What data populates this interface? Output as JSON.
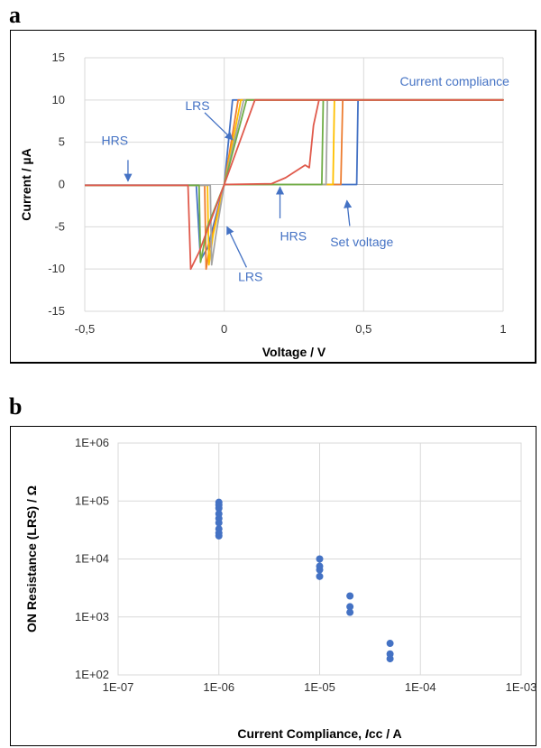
{
  "panels": {
    "a": "a",
    "b": "b"
  },
  "chart_data": [
    {
      "type": "line",
      "xlabel": "Voltage / V",
      "ylabel": "Current / µA",
      "xlim": [
        -0.5,
        1
      ],
      "ylim": [
        -15,
        15
      ],
      "xticks": [
        -0.5,
        0,
        0.5,
        1
      ],
      "xtick_labels": [
        "-0,5",
        "0",
        "0,5",
        "1"
      ],
      "yticks": [
        15,
        10,
        5,
        0,
        -5,
        -10,
        -15
      ],
      "yvgrid": true,
      "series": [
        {
          "color": "#4472c4",
          "points": [
            [
              -0.5,
              -0.1
            ],
            [
              -0.1,
              -0.1
            ],
            [
              -0.085,
              -8.9
            ],
            [
              -0.06,
              -7.5
            ],
            [
              0,
              0
            ],
            [
              0.03,
              10
            ],
            [
              1,
              10
            ],
            [
              0.48,
              10
            ],
            [
              0.475,
              0
            ],
            [
              0,
              0
            ]
          ]
        },
        {
          "color": "#ed7d31",
          "points": [
            [
              -0.5,
              -0.1
            ],
            [
              -0.07,
              -0.1
            ],
            [
              -0.065,
              -10
            ],
            [
              -0.05,
              -7
            ],
            [
              0,
              0
            ],
            [
              0.05,
              10
            ],
            [
              1,
              10
            ],
            [
              0.425,
              10
            ],
            [
              0.418,
              0
            ],
            [
              0,
              0
            ]
          ]
        },
        {
          "color": "#ffc000",
          "points": [
            [
              -0.5,
              -0.1
            ],
            [
              -0.06,
              -0.1
            ],
            [
              -0.055,
              -9.5
            ],
            [
              -0.04,
              -6
            ],
            [
              0,
              0
            ],
            [
              0.06,
              10
            ],
            [
              1,
              10
            ],
            [
              0.395,
              10
            ],
            [
              0.39,
              0
            ],
            [
              0,
              0
            ]
          ]
        },
        {
          "color": "#a5a5a5",
          "points": [
            [
              -0.5,
              -0.1
            ],
            [
              -0.05,
              -0.1
            ],
            [
              -0.045,
              -9.5
            ],
            [
              -0.03,
              -6
            ],
            [
              0,
              0
            ],
            [
              0.07,
              10
            ],
            [
              1,
              10
            ],
            [
              0.37,
              10
            ],
            [
              0.365,
              0
            ],
            [
              0,
              0
            ]
          ]
        },
        {
          "color": "#70ad47",
          "points": [
            [
              -0.5,
              -0.1
            ],
            [
              -0.09,
              -0.1
            ],
            [
              -0.085,
              -9.2
            ],
            [
              -0.06,
              -5
            ],
            [
              0,
              0
            ],
            [
              0.08,
              10
            ],
            [
              1,
              10
            ],
            [
              0.355,
              10
            ],
            [
              0.35,
              0
            ],
            [
              0,
              0
            ]
          ]
        },
        {
          "color": "#e05a4c",
          "points": [
            [
              -0.5,
              -0.1
            ],
            [
              -0.13,
              -0.1
            ],
            [
              -0.12,
              -10
            ],
            [
              -0.09,
              -8
            ],
            [
              0,
              0
            ],
            [
              0.11,
              10
            ],
            [
              1,
              10
            ],
            [
              0.34,
              10
            ],
            [
              0.32,
              7
            ],
            [
              0.305,
              2
            ],
            [
              0.29,
              2.3
            ],
            [
              0.22,
              0.8
            ],
            [
              0.17,
              0.1
            ],
            [
              0,
              0
            ]
          ]
        }
      ],
      "annotations": [
        {
          "text": "Current compliance",
          "x": 0.63,
          "y": 11.7,
          "arrow": null
        },
        {
          "text": "LRS",
          "x": -0.14,
          "y": 8.8,
          "arrow": [
            -0.07,
            8.5,
            0.03,
            5.3
          ]
        },
        {
          "text": "HRS",
          "x": -0.44,
          "y": 4.7,
          "arrow": [
            -0.345,
            2.9,
            -0.345,
            0.4
          ]
        },
        {
          "text": "HRS",
          "x": 0.2,
          "y": -6.6,
          "arrow": [
            0.2,
            -4,
            0.2,
            -0.3
          ]
        },
        {
          "text": "LRS",
          "x": 0.05,
          "y": -11.4,
          "arrow": [
            0.08,
            -9.8,
            0.01,
            -5
          ]
        },
        {
          "text": "Set voltage",
          "x": 0.38,
          "y": -7.3,
          "arrow": [
            0.45,
            -4.9,
            0.44,
            -1.9
          ]
        }
      ]
    },
    {
      "type": "scatter",
      "xscale": "log",
      "yscale": "log",
      "xlabel_main": "Current Compliance, ",
      "xlabel_var": "I",
      "xlabel_sub": "cc",
      "xlabel_unit": " / A",
      "ylabel": "ON Resistance (LRS) / Ω",
      "xlim": [
        1e-07,
        0.001
      ],
      "ylim": [
        100,
        1000000
      ],
      "xtick_labels": [
        "1E-07",
        "1E-06",
        "1E-05",
        "1E-04",
        "1E-03"
      ],
      "ytick_labels": [
        "1E+06",
        "1E+05",
        "1E+04",
        "1E+03",
        "1E+02"
      ],
      "color": "#4472c4",
      "points": [
        [
          1e-06,
          95000
        ],
        [
          1e-06,
          85000
        ],
        [
          1e-06,
          75000
        ],
        [
          1e-06,
          60000
        ],
        [
          1e-06,
          50000
        ],
        [
          1e-06,
          42000
        ],
        [
          1e-06,
          33000
        ],
        [
          1e-06,
          28000
        ],
        [
          1e-06,
          25000
        ],
        [
          1e-05,
          10000
        ],
        [
          1e-05,
          7500
        ],
        [
          1e-05,
          6500
        ],
        [
          1e-05,
          5000
        ],
        [
          2e-05,
          2300
        ],
        [
          2e-05,
          1500
        ],
        [
          2e-05,
          1200
        ],
        [
          5e-05,
          350
        ],
        [
          5e-05,
          230
        ],
        [
          5e-05,
          190
        ]
      ]
    }
  ]
}
